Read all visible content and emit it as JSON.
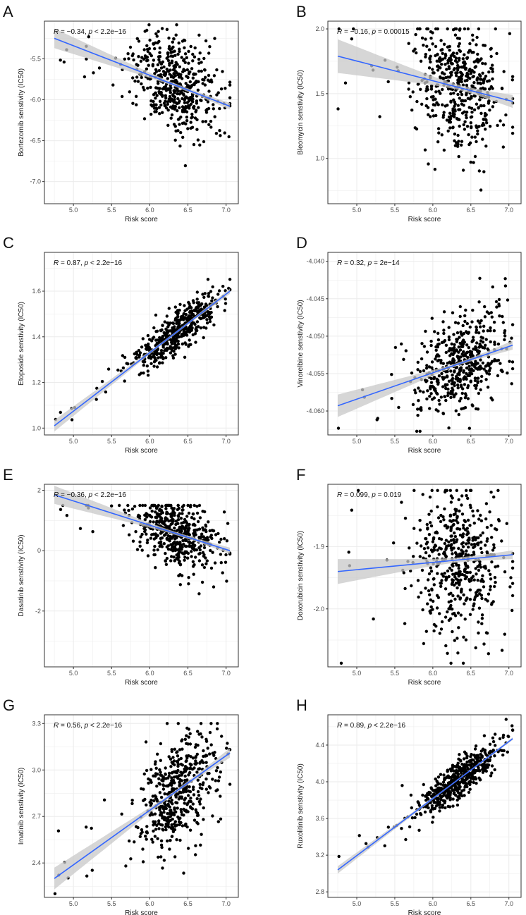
{
  "chart_data": [
    {
      "letter": "A",
      "type": "scatter",
      "xlabel": "Risk score",
      "ylabel": "Bortezomib senstivity (IC50)",
      "xlim": [
        4.62,
        7.16
      ],
      "xticks": [
        5.0,
        5.5,
        6.0,
        6.5,
        7.0
      ],
      "ylim": [
        -7.27,
        -5.04
      ],
      "yticks": [
        -5.5,
        -6.0,
        -6.5,
        -7.0
      ],
      "ytick_labels": [
        "-5.5",
        "-6.0",
        "-6.5",
        "-7.0"
      ],
      "r_text": "−0.34",
      "p_op": "<",
      "p_value": "2.2e−16",
      "fit": {
        "x": [
          4.75,
          7.05
        ],
        "y": [
          -5.25,
          -6.08
        ]
      },
      "ci": {
        "left": 0.12,
        "mid": 0.02,
        "right": 0.04
      },
      "n": 500,
      "noise_sd": 0.27,
      "seed": 11
    },
    {
      "letter": "B",
      "type": "scatter",
      "xlabel": "Risk score",
      "ylabel": "Bleomycin senstivity (IC50)",
      "xlim": [
        4.62,
        7.16
      ],
      "xticks": [
        5.0,
        5.5,
        6.0,
        6.5,
        7.0
      ],
      "ylim": [
        0.65,
        2.06
      ],
      "yticks": [
        2.0,
        1.5,
        1.0
      ],
      "ytick_labels": [
        "2.0",
        "1.5",
        "1.0"
      ],
      "r_text": "−0.16",
      "p_op": "=",
      "p_value": "0.00015",
      "fit": {
        "x": [
          4.75,
          7.05
        ],
        "y": [
          1.79,
          1.44
        ]
      },
      "ci": {
        "left": 0.13,
        "mid": 0.02,
        "right": 0.05
      },
      "n": 500,
      "noise_sd": 0.24,
      "seed": 22,
      "ymax_clip": 2.0
    },
    {
      "letter": "C",
      "type": "scatter",
      "xlabel": "Risk score",
      "ylabel": "Etoposide senstivity (IC50)",
      "xlim": [
        4.62,
        7.16
      ],
      "xticks": [
        5.0,
        5.5,
        6.0,
        6.5,
        7.0
      ],
      "ylim": [
        0.97,
        1.77
      ],
      "yticks": [
        1.0,
        1.2,
        1.4,
        1.6
      ],
      "ytick_labels": [
        "1.0",
        "1.2",
        "1.4",
        "1.6"
      ],
      "r_text": "0.87",
      "p_op": "<",
      "p_value": "2.2e−16",
      "fit": {
        "x": [
          4.75,
          7.05
        ],
        "y": [
          1.01,
          1.6
        ]
      },
      "ci": {
        "left": 0.025,
        "mid": 0.005,
        "right": 0.012
      },
      "n": 500,
      "noise_sd": 0.045,
      "seed": 33,
      "ymax_clip": 1.745
    },
    {
      "letter": "D",
      "type": "scatter",
      "xlabel": "Risk score",
      "ylabel": "Vinorelbine senstivity (IC50)",
      "xlim": [
        4.62,
        7.16
      ],
      "xticks": [
        5.0,
        5.5,
        6.0,
        6.5,
        7.0
      ],
      "ylim": [
        -4.0632,
        -4.0388
      ],
      "yticks": [
        -4.04,
        -4.045,
        -4.05,
        -4.055,
        -4.06
      ],
      "ytick_labels": [
        "-4.040",
        "-4.045",
        "-4.050",
        "-4.055",
        "-4.060"
      ],
      "r_text": "0.32",
      "p_op": "=",
      "p_value": "2e−14",
      "fit": {
        "x": [
          4.75,
          7.05
        ],
        "y": [
          -4.0593,
          -4.0512
        ]
      },
      "ci": {
        "left": 0.0015,
        "mid": 0.0002,
        "right": 0.0006
      },
      "n": 500,
      "noise_sd": 0.0032,
      "seed": 44,
      "ymax_clip": -4.0401
    },
    {
      "letter": "E",
      "type": "scatter",
      "xlabel": "Risk score",
      "ylabel": "Dasatinib senstivity (IC50)",
      "xlim": [
        4.62,
        7.16
      ],
      "xticks": [
        5.0,
        5.5,
        6.0,
        6.5,
        7.0
      ],
      "ylim": [
        -3.85,
        2.2
      ],
      "yticks": [
        2,
        0,
        -2
      ],
      "ytick_labels": [
        "2",
        "0",
        "-2"
      ],
      "r_text": "−0.36",
      "p_op": "<",
      "p_value": "2.2e−16",
      "fit": {
        "x": [
          4.75,
          7.05
        ],
        "y": [
          1.85,
          0.0
        ]
      },
      "ci": {
        "left": 0.3,
        "mid": 0.05,
        "right": 0.1
      },
      "n": 500,
      "noise_sd": 0.55,
      "seed": 55,
      "ymax_clip": 1.5
    },
    {
      "letter": "F",
      "type": "scatter",
      "xlabel": "Risk score",
      "ylabel": "Doxorubicin senstivity (IC50)",
      "xlim": [
        4.62,
        7.16
      ],
      "xticks": [
        5.0,
        5.5,
        6.0,
        6.5,
        7.0
      ],
      "ylim": [
        -2.093,
        -1.8
      ],
      "yticks": [
        -1.9,
        -2.0
      ],
      "ytick_labels": [
        "-1.9",
        "-2.0"
      ],
      "r_text": "0.099",
      "p_op": "=",
      "p_value": "0.019",
      "fit": {
        "x": [
          4.75,
          7.05
        ],
        "y": [
          -1.94,
          -1.913
        ]
      },
      "ci": {
        "left": 0.02,
        "mid": 0.004,
        "right": 0.007
      },
      "n": 500,
      "noise_sd": 0.055,
      "seed": 66,
      "ymax_clip": -1.81
    },
    {
      "letter": "G",
      "type": "scatter",
      "xlabel": "Risk score",
      "ylabel": "Imatinib senstivity (IC50)",
      "xlim": [
        4.62,
        7.16
      ],
      "xticks": [
        5.0,
        5.5,
        6.0,
        6.5,
        7.0
      ],
      "ylim": [
        2.178,
        3.356
      ],
      "yticks": [
        2.4,
        2.7,
        3.0,
        3.3
      ],
      "ytick_labels": [
        "2.4",
        "2.7",
        "3.0",
        "3.3"
      ],
      "r_text": "0.56",
      "p_op": "<",
      "p_value": "2.2e−16",
      "fit": {
        "x": [
          4.75,
          7.05
        ],
        "y": [
          2.3,
          3.11
        ]
      },
      "ci": {
        "left": 0.07,
        "mid": 0.01,
        "right": 0.03
      },
      "n": 500,
      "noise_sd": 0.16,
      "seed": 77,
      "ymax_clip": 3.3
    },
    {
      "letter": "H",
      "type": "scatter",
      "xlabel": "Risk score",
      "ylabel": "Ruxolitinib senstivity (IC50)",
      "xlim": [
        4.62,
        7.16
      ],
      "xticks": [
        5.0,
        5.5,
        6.0,
        6.5,
        7.0
      ],
      "ylim": [
        2.74,
        4.73
      ],
      "yticks": [
        2.8,
        3.2,
        3.6,
        4.0,
        4.4
      ],
      "ytick_labels": [
        "2.8",
        "3.2",
        "3.6",
        "4.0",
        "4.4"
      ],
      "r_text": "0.89",
      "p_op": "<",
      "p_value": "2.2e−16",
      "fit": {
        "x": [
          4.75,
          7.05
        ],
        "y": [
          3.04,
          4.47
        ]
      },
      "ci": {
        "left": 0.04,
        "mid": 0.008,
        "right": 0.015
      },
      "n": 500,
      "noise_sd": 0.1,
      "seed": 88,
      "ymax_clip": 4.68
    }
  ],
  "colors": {
    "points": "#000000",
    "fit_line": "#3366ff",
    "ci_band": "#c8c8c8",
    "grid": "#ebebeb",
    "border": "#333333"
  },
  "annotation": {
    "r_label": "R",
    "p_label": "p",
    "eq": " = ",
    "sep": ", "
  }
}
